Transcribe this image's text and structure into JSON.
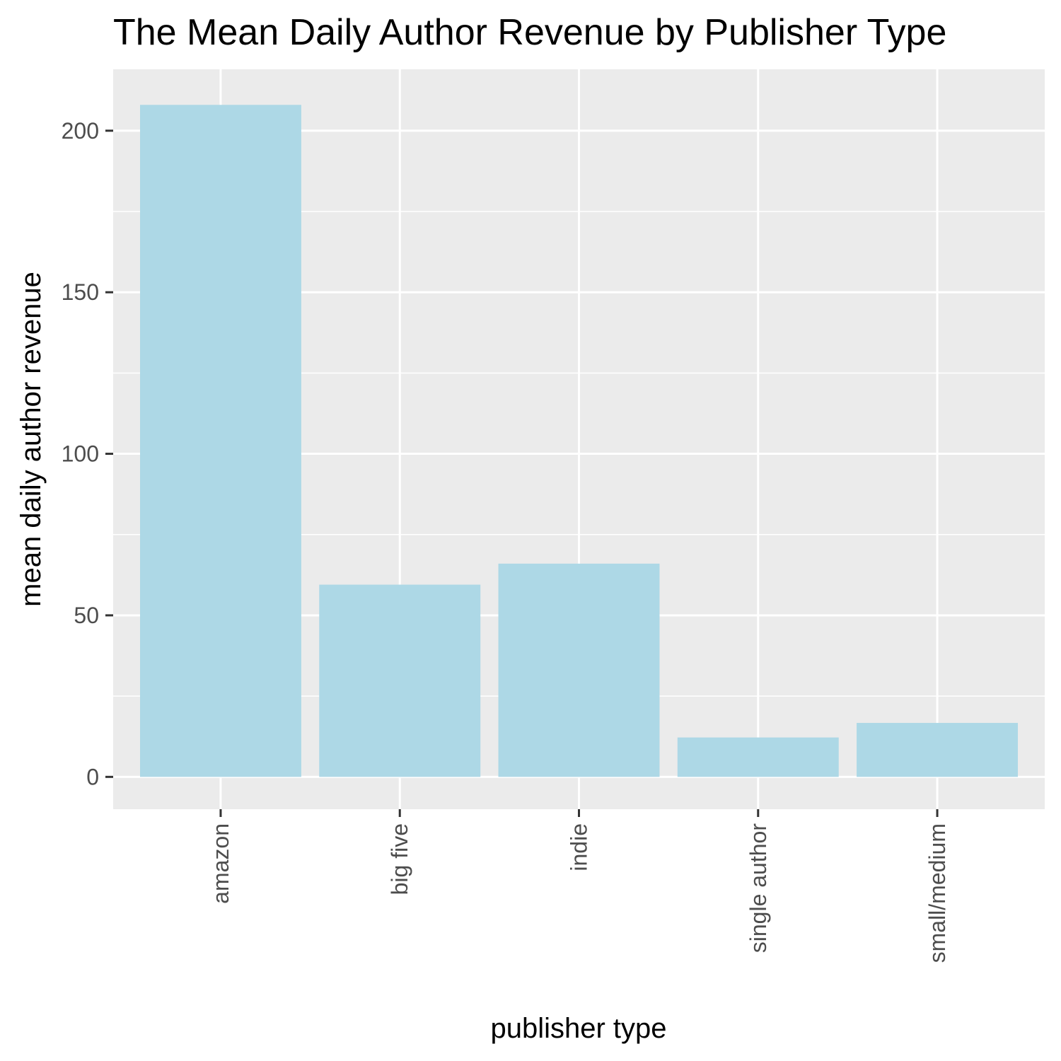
{
  "chart_data": {
    "type": "bar",
    "title": "The Mean Daily Author Revenue by Publisher Type",
    "xlabel": "publisher type",
    "ylabel": "mean daily author revenue",
    "categories": [
      "amazon",
      "big five",
      "indie",
      "single author",
      "small/medium"
    ],
    "values": [
      208,
      59.5,
      66,
      12.2,
      16.7
    ],
    "ylim": [
      -10,
      219
    ],
    "yticks": [
      0,
      50,
      100,
      150,
      200
    ],
    "grid": true,
    "legend": "none",
    "colors": {
      "bar": "#add8e6",
      "panel": "#ebebeb",
      "grid": "#ffffff",
      "tick": "#333333"
    }
  }
}
